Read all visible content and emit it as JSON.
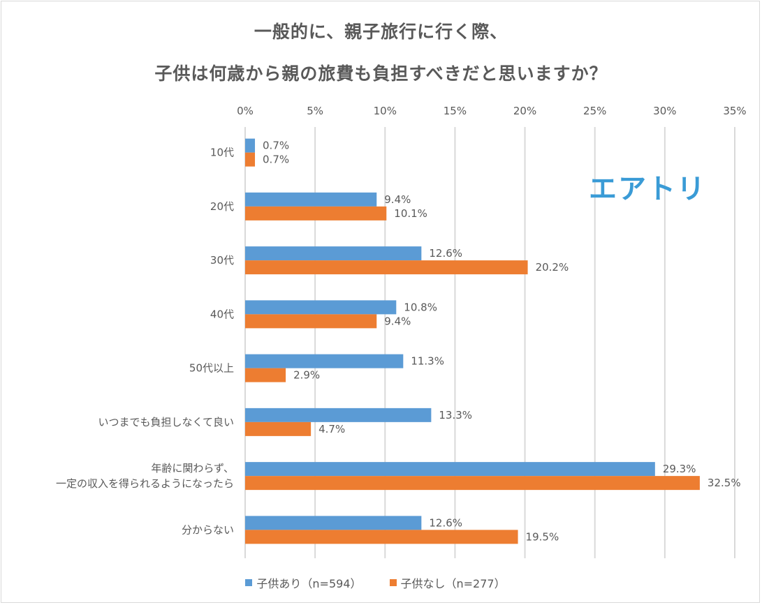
{
  "chart_data": {
    "type": "bar",
    "orientation": "horizontal",
    "title": [
      "一般的に、親子旅行に行く際、",
      "子供は何歳から親の旅費も負担すべきだと思いますか？"
    ],
    "xlabel": "",
    "ylabel": "",
    "xlim": [
      0,
      35
    ],
    "x_ticks": [
      "0%",
      "5%",
      "10%",
      "15%",
      "20%",
      "25%",
      "30%",
      "35%"
    ],
    "x_tick_values": [
      0,
      5,
      10,
      15,
      20,
      25,
      30,
      35
    ],
    "grid": true,
    "legend_position": "bottom",
    "categories": [
      [
        "10代"
      ],
      [
        "20代"
      ],
      [
        "30代"
      ],
      [
        "40代"
      ],
      [
        "50代以上"
      ],
      [
        "いつまでも負担しなくて良い"
      ],
      [
        "年齢に関わらず、",
        "一定の収入を得られるようになったら"
      ],
      [
        "分からない"
      ]
    ],
    "series": [
      {
        "name": "子供あり（n=594）",
        "color": "#5b9bd5",
        "values": [
          0.7,
          9.4,
          12.6,
          10.8,
          11.3,
          13.3,
          29.3,
          12.6
        ],
        "labels": [
          "0.7%",
          "9.4%",
          "12.6%",
          "10.8%",
          "11.3%",
          "13.3%",
          "29.3%",
          "12.6%"
        ]
      },
      {
        "name": "子供なし（n=277）",
        "color": "#ed7d31",
        "values": [
          0.7,
          10.1,
          20.2,
          9.4,
          2.9,
          4.7,
          32.5,
          19.5
        ],
        "labels": [
          "0.7%",
          "10.1%",
          "20.2%",
          "9.4%",
          "2.9%",
          "4.7%",
          "32.5%",
          "19.5%"
        ]
      }
    ]
  },
  "logo": {
    "text": "エアトリ",
    "color": "#3a9bd6"
  },
  "colors": {
    "text": "#595959",
    "grid": "#d9d9d9"
  }
}
